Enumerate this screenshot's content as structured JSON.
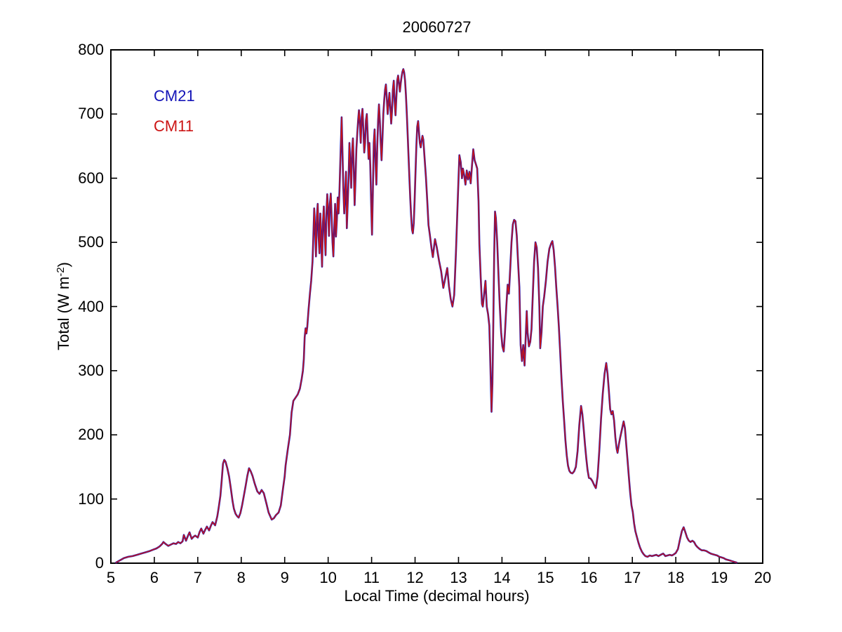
{
  "figure": {
    "background": "#FFFFFF",
    "axis_color": "#000000"
  },
  "title": "20060727",
  "legend": [
    {
      "label": "CM21",
      "color": "#1414B8"
    },
    {
      "label": "CM11",
      "color": "#CC1414"
    }
  ],
  "chart_data": {
    "type": "line",
    "title": "20060727",
    "xlabel": "Local Time (decimal hours)",
    "ylabel": "Total (W m⁻²)",
    "ylabel_parts": {
      "pre": "Total (W m",
      "sup": "-2",
      "post": ")"
    },
    "xlim": [
      5,
      20
    ],
    "ylim": [
      0,
      800
    ],
    "xticks": [
      5,
      6,
      7,
      8,
      9,
      10,
      11,
      12,
      13,
      14,
      15,
      16,
      17,
      18,
      19,
      20
    ],
    "yticks": [
      0,
      100,
      200,
      300,
      400,
      500,
      600,
      700,
      800
    ],
    "grid": false,
    "legend_position": "upper-left-text-only",
    "series": [
      {
        "name": "CM21",
        "color": "#1414B8",
        "stroke_width": 2.6,
        "y_ref": "shared_points"
      },
      {
        "name": "CM11",
        "color": "#CC1414",
        "stroke_width": 1.4,
        "y_ref": "shared_points"
      }
    ],
    "points_note": "Both instruments overlap almost exactly; shared trace below as [t_decimal_hours, W_per_m2]",
    "points": [
      [
        5.12,
        1
      ],
      [
        5.2,
        4
      ],
      [
        5.3,
        8
      ],
      [
        5.4,
        10
      ],
      [
        5.5,
        11
      ],
      [
        5.6,
        13
      ],
      [
        5.7,
        15
      ],
      [
        5.8,
        17
      ],
      [
        5.9,
        19
      ],
      [
        5.97,
        21
      ],
      [
        6.05,
        23
      ],
      [
        6.12,
        26
      ],
      [
        6.18,
        30
      ],
      [
        6.21,
        33
      ],
      [
        6.26,
        30
      ],
      [
        6.32,
        27
      ],
      [
        6.38,
        29
      ],
      [
        6.44,
        31
      ],
      [
        6.5,
        30
      ],
      [
        6.55,
        33
      ],
      [
        6.6,
        31
      ],
      [
        6.65,
        34
      ],
      [
        6.68,
        44
      ],
      [
        6.73,
        35
      ],
      [
        6.77,
        42
      ],
      [
        6.81,
        48
      ],
      [
        6.86,
        38
      ],
      [
        6.9,
        41
      ],
      [
        6.94,
        43
      ],
      [
        7.0,
        40
      ],
      [
        7.04,
        48
      ],
      [
        7.08,
        54
      ],
      [
        7.13,
        46
      ],
      [
        7.17,
        52
      ],
      [
        7.21,
        57
      ],
      [
        7.26,
        51
      ],
      [
        7.3,
        58
      ],
      [
        7.34,
        64
      ],
      [
        7.4,
        59
      ],
      [
        7.45,
        73
      ],
      [
        7.48,
        86
      ],
      [
        7.52,
        105
      ],
      [
        7.55,
        128
      ],
      [
        7.58,
        155
      ],
      [
        7.61,
        161
      ],
      [
        7.64,
        158
      ],
      [
        7.68,
        148
      ],
      [
        7.72,
        135
      ],
      [
        7.76,
        117
      ],
      [
        7.8,
        97
      ],
      [
        7.83,
        85
      ],
      [
        7.87,
        77
      ],
      [
        7.91,
        73
      ],
      [
        7.94,
        71
      ],
      [
        7.98,
        78
      ],
      [
        8.02,
        90
      ],
      [
        8.06,
        105
      ],
      [
        8.1,
        120
      ],
      [
        8.14,
        136
      ],
      [
        8.18,
        148
      ],
      [
        8.22,
        143
      ],
      [
        8.26,
        136
      ],
      [
        8.31,
        124
      ],
      [
        8.37,
        112
      ],
      [
        8.42,
        108
      ],
      [
        8.47,
        114
      ],
      [
        8.52,
        109
      ],
      [
        8.58,
        93
      ],
      [
        8.63,
        79
      ],
      [
        8.7,
        68
      ],
      [
        8.75,
        70
      ],
      [
        8.8,
        75
      ],
      [
        8.86,
        79
      ],
      [
        8.91,
        90
      ],
      [
        8.96,
        116
      ],
      [
        9.0,
        135
      ],
      [
        9.02,
        152
      ],
      [
        9.07,
        177
      ],
      [
        9.12,
        200
      ],
      [
        9.16,
        235
      ],
      [
        9.2,
        253
      ],
      [
        9.25,
        258
      ],
      [
        9.3,
        263
      ],
      [
        9.35,
        272
      ],
      [
        9.39,
        287
      ],
      [
        9.42,
        300
      ],
      [
        9.44,
        318
      ],
      [
        9.46,
        352
      ],
      [
        9.48,
        366
      ],
      [
        9.5,
        358
      ],
      [
        9.52,
        368
      ],
      [
        9.55,
        396
      ],
      [
        9.58,
        420
      ],
      [
        9.61,
        440
      ],
      [
        9.64,
        470
      ],
      [
        9.66,
        510
      ],
      [
        9.68,
        553
      ],
      [
        9.7,
        520
      ],
      [
        9.72,
        478
      ],
      [
        9.74,
        540
      ],
      [
        9.76,
        560
      ],
      [
        9.78,
        510
      ],
      [
        9.8,
        483
      ],
      [
        9.82,
        545
      ],
      [
        9.84,
        505
      ],
      [
        9.86,
        462
      ],
      [
        9.88,
        530
      ],
      [
        9.9,
        556
      ],
      [
        9.92,
        515
      ],
      [
        9.94,
        480
      ],
      [
        9.96,
        545
      ],
      [
        9.98,
        575
      ],
      [
        10.0,
        548
      ],
      [
        10.02,
        510
      ],
      [
        10.04,
        560
      ],
      [
        10.06,
        576
      ],
      [
        10.08,
        540
      ],
      [
        10.1,
        500
      ],
      [
        10.12,
        478
      ],
      [
        10.14,
        520
      ],
      [
        10.16,
        560
      ],
      [
        10.18,
        509
      ],
      [
        10.2,
        535
      ],
      [
        10.22,
        570
      ],
      [
        10.24,
        545
      ],
      [
        10.26,
        580
      ],
      [
        10.28,
        625
      ],
      [
        10.3,
        668
      ],
      [
        10.31,
        695
      ],
      [
        10.33,
        640
      ],
      [
        10.35,
        585
      ],
      [
        10.37,
        545
      ],
      [
        10.39,
        575
      ],
      [
        10.41,
        610
      ],
      [
        10.43,
        522
      ],
      [
        10.45,
        560
      ],
      [
        10.47,
        600
      ],
      [
        10.49,
        655
      ],
      [
        10.51,
        620
      ],
      [
        10.53,
        585
      ],
      [
        10.55,
        640
      ],
      [
        10.57,
        662
      ],
      [
        10.59,
        615
      ],
      [
        10.61,
        558
      ],
      [
        10.63,
        600
      ],
      [
        10.65,
        645
      ],
      [
        10.67,
        670
      ],
      [
        10.69,
        690
      ],
      [
        10.71,
        706
      ],
      [
        10.73,
        685
      ],
      [
        10.75,
        655
      ],
      [
        10.77,
        695
      ],
      [
        10.79,
        708
      ],
      [
        10.81,
        678
      ],
      [
        10.83,
        640
      ],
      [
        10.85,
        655
      ],
      [
        10.87,
        690
      ],
      [
        10.89,
        700
      ],
      [
        10.91,
        668
      ],
      [
        10.93,
        630
      ],
      [
        10.95,
        655
      ],
      [
        10.97,
        620
      ],
      [
        10.99,
        560
      ],
      [
        11.01,
        512
      ],
      [
        11.03,
        585
      ],
      [
        11.05,
        655
      ],
      [
        11.07,
        676
      ],
      [
        11.09,
        625
      ],
      [
        11.11,
        590
      ],
      [
        11.13,
        650
      ],
      [
        11.15,
        690
      ],
      [
        11.17,
        715
      ],
      [
        11.19,
        688
      ],
      [
        11.21,
        655
      ],
      [
        11.23,
        628
      ],
      [
        11.25,
        663
      ],
      [
        11.27,
        700
      ],
      [
        11.29,
        722
      ],
      [
        11.31,
        738
      ],
      [
        11.33,
        746
      ],
      [
        11.35,
        724
      ],
      [
        11.37,
        700
      ],
      [
        11.39,
        717
      ],
      [
        11.41,
        733
      ],
      [
        11.43,
        712
      ],
      [
        11.45,
        685
      ],
      [
        11.47,
        705
      ],
      [
        11.49,
        738
      ],
      [
        11.51,
        752
      ],
      [
        11.53,
        720
      ],
      [
        11.55,
        698
      ],
      [
        11.57,
        726
      ],
      [
        11.59,
        752
      ],
      [
        11.61,
        760
      ],
      [
        11.63,
        748
      ],
      [
        11.65,
        735
      ],
      [
        11.67,
        748
      ],
      [
        11.69,
        758
      ],
      [
        11.71,
        766
      ],
      [
        11.73,
        770
      ],
      [
        11.75,
        765
      ],
      [
        11.77,
        752
      ],
      [
        11.79,
        730
      ],
      [
        11.81,
        700
      ],
      [
        11.83,
        668
      ],
      [
        11.85,
        635
      ],
      [
        11.87,
        600
      ],
      [
        11.89,
        568
      ],
      [
        11.91,
        540
      ],
      [
        11.93,
        520
      ],
      [
        11.95,
        514
      ],
      [
        11.97,
        530
      ],
      [
        11.99,
        565
      ],
      [
        12.01,
        610
      ],
      [
        12.03,
        650
      ],
      [
        12.05,
        680
      ],
      [
        12.07,
        689
      ],
      [
        12.09,
        672
      ],
      [
        12.11,
        655
      ],
      [
        12.13,
        648
      ],
      [
        12.15,
        658
      ],
      [
        12.17,
        666
      ],
      [
        12.19,
        660
      ],
      [
        12.22,
        630
      ],
      [
        12.25,
        602
      ],
      [
        12.28,
        565
      ],
      [
        12.31,
        527
      ],
      [
        12.34,
        512
      ],
      [
        12.38,
        490
      ],
      [
        12.41,
        477
      ],
      [
        12.44,
        495
      ],
      [
        12.46,
        505
      ],
      [
        12.5,
        492
      ],
      [
        12.55,
        472
      ],
      [
        12.6,
        455
      ],
      [
        12.65,
        429
      ],
      [
        12.7,
        446
      ],
      [
        12.74,
        460
      ],
      [
        12.78,
        432
      ],
      [
        12.82,
        412
      ],
      [
        12.86,
        400
      ],
      [
        12.9,
        418
      ],
      [
        12.94,
        484
      ],
      [
        12.98,
        560
      ],
      [
        13.0,
        600
      ],
      [
        13.02,
        636
      ],
      [
        13.05,
        625
      ],
      [
        13.08,
        600
      ],
      [
        13.1,
        615
      ],
      [
        13.13,
        605
      ],
      [
        13.16,
        590
      ],
      [
        13.19,
        612
      ],
      [
        13.22,
        598
      ],
      [
        13.25,
        610
      ],
      [
        13.28,
        592
      ],
      [
        13.31,
        620
      ],
      [
        13.34,
        645
      ],
      [
        13.37,
        628
      ],
      [
        13.4,
        622
      ],
      [
        13.43,
        615
      ],
      [
        13.46,
        564
      ],
      [
        13.48,
        498
      ],
      [
        13.51,
        445
      ],
      [
        13.54,
        404
      ],
      [
        13.56,
        400
      ],
      [
        13.59,
        420
      ],
      [
        13.62,
        440
      ],
      [
        13.65,
        400
      ],
      [
        13.68,
        388
      ],
      [
        13.71,
        370
      ],
      [
        13.74,
        290
      ],
      [
        13.76,
        236
      ],
      [
        13.78,
        280
      ],
      [
        13.8,
        370
      ],
      [
        13.82,
        480
      ],
      [
        13.84,
        548
      ],
      [
        13.86,
        538
      ],
      [
        13.89,
        500
      ],
      [
        13.92,
        450
      ],
      [
        13.95,
        400
      ],
      [
        13.98,
        360
      ],
      [
        14.01,
        338
      ],
      [
        14.04,
        330
      ],
      [
        14.07,
        360
      ],
      [
        14.1,
        400
      ],
      [
        14.13,
        434
      ],
      [
        14.16,
        420
      ],
      [
        14.19,
        460
      ],
      [
        14.22,
        500
      ],
      [
        14.25,
        528
      ],
      [
        14.28,
        535
      ],
      [
        14.31,
        533
      ],
      [
        14.34,
        510
      ],
      [
        14.37,
        470
      ],
      [
        14.4,
        430
      ],
      [
        14.43,
        340
      ],
      [
        14.46,
        315
      ],
      [
        14.49,
        340
      ],
      [
        14.52,
        308
      ],
      [
        14.55,
        360
      ],
      [
        14.57,
        393
      ],
      [
        14.59,
        360
      ],
      [
        14.62,
        338
      ],
      [
        14.65,
        345
      ],
      [
        14.68,
        365
      ],
      [
        14.71,
        420
      ],
      [
        14.74,
        470
      ],
      [
        14.77,
        500
      ],
      [
        14.8,
        492
      ],
      [
        14.83,
        460
      ],
      [
        14.86,
        400
      ],
      [
        14.88,
        335
      ],
      [
        14.91,
        360
      ],
      [
        14.94,
        400
      ],
      [
        14.97,
        415
      ],
      [
        15.01,
        440
      ],
      [
        15.05,
        470
      ],
      [
        15.09,
        490
      ],
      [
        15.13,
        498
      ],
      [
        15.16,
        502
      ],
      [
        15.19,
        488
      ],
      [
        15.22,
        462
      ],
      [
        15.25,
        430
      ],
      [
        15.28,
        400
      ],
      [
        15.31,
        368
      ],
      [
        15.34,
        328
      ],
      [
        15.37,
        288
      ],
      [
        15.4,
        252
      ],
      [
        15.43,
        222
      ],
      [
        15.46,
        192
      ],
      [
        15.49,
        168
      ],
      [
        15.52,
        152
      ],
      [
        15.55,
        144
      ],
      [
        15.58,
        141
      ],
      [
        15.62,
        140
      ],
      [
        15.66,
        143
      ],
      [
        15.7,
        150
      ],
      [
        15.74,
        175
      ],
      [
        15.78,
        215
      ],
      [
        15.82,
        245
      ],
      [
        15.85,
        232
      ],
      [
        15.88,
        210
      ],
      [
        15.91,
        185
      ],
      [
        15.94,
        163
      ],
      [
        15.97,
        145
      ],
      [
        16.0,
        133
      ],
      [
        16.04,
        132
      ],
      [
        16.08,
        128
      ],
      [
        16.12,
        122
      ],
      [
        16.16,
        117
      ],
      [
        16.2,
        135
      ],
      [
        16.24,
        175
      ],
      [
        16.28,
        225
      ],
      [
        16.32,
        265
      ],
      [
        16.36,
        295
      ],
      [
        16.4,
        312
      ],
      [
        16.43,
        295
      ],
      [
        16.46,
        268
      ],
      [
        16.49,
        240
      ],
      [
        16.52,
        232
      ],
      [
        16.55,
        237
      ],
      [
        16.58,
        222
      ],
      [
        16.61,
        196
      ],
      [
        16.64,
        178
      ],
      [
        16.66,
        172
      ],
      [
        16.69,
        185
      ],
      [
        16.72,
        196
      ],
      [
        16.75,
        205
      ],
      [
        16.78,
        215
      ],
      [
        16.8,
        221
      ],
      [
        16.83,
        210
      ],
      [
        16.86,
        185
      ],
      [
        16.89,
        160
      ],
      [
        16.92,
        135
      ],
      [
        16.95,
        110
      ],
      [
        16.98,
        90
      ],
      [
        17.01,
        80
      ],
      [
        17.04,
        62
      ],
      [
        17.07,
        50
      ],
      [
        17.1,
        42
      ],
      [
        17.14,
        32
      ],
      [
        17.18,
        24
      ],
      [
        17.22,
        18
      ],
      [
        17.26,
        14
      ],
      [
        17.3,
        11
      ],
      [
        17.35,
        10
      ],
      [
        17.4,
        12
      ],
      [
        17.45,
        11
      ],
      [
        17.5,
        12
      ],
      [
        17.55,
        13
      ],
      [
        17.6,
        11
      ],
      [
        17.65,
        13
      ],
      [
        17.71,
        15
      ],
      [
        17.76,
        11
      ],
      [
        17.81,
        12
      ],
      [
        17.86,
        13
      ],
      [
        17.91,
        12
      ],
      [
        17.96,
        14
      ],
      [
        18.0,
        16
      ],
      [
        18.05,
        22
      ],
      [
        18.1,
        38
      ],
      [
        18.14,
        50
      ],
      [
        18.18,
        56
      ],
      [
        18.22,
        48
      ],
      [
        18.26,
        40
      ],
      [
        18.3,
        35
      ],
      [
        18.34,
        33
      ],
      [
        18.38,
        35
      ],
      [
        18.42,
        33
      ],
      [
        18.46,
        28
      ],
      [
        18.5,
        25
      ],
      [
        18.55,
        22
      ],
      [
        18.6,
        20
      ],
      [
        18.65,
        20
      ],
      [
        18.7,
        19
      ],
      [
        18.75,
        17
      ],
      [
        18.8,
        15
      ],
      [
        18.85,
        14
      ],
      [
        18.9,
        13
      ],
      [
        18.95,
        12
      ],
      [
        19.0,
        10
      ],
      [
        19.05,
        9
      ],
      [
        19.1,
        8
      ],
      [
        19.15,
        6
      ],
      [
        19.2,
        5
      ],
      [
        19.25,
        4
      ],
      [
        19.3,
        3
      ],
      [
        19.35,
        2
      ],
      [
        19.4,
        1
      ]
    ]
  }
}
